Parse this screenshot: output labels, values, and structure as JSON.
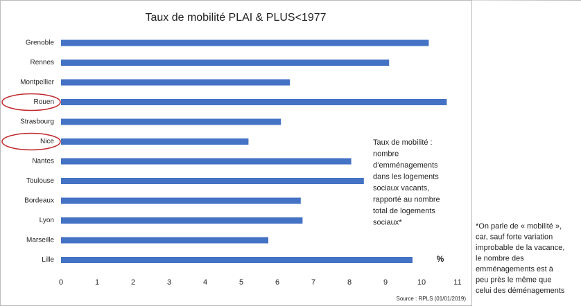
{
  "chart_data": {
    "type": "hbar",
    "title": "Taux de mobilité PLAI & PLUS<1977",
    "categories": [
      "Grenoble",
      "Rennes",
      "Montpellier",
      "Rouen",
      "Strasbourg",
      "Nice",
      "Nantes",
      "Toulouse",
      "Bordeaux",
      "Lyon",
      "Marseille",
      "Lille"
    ],
    "values": [
      10.2,
      9.1,
      6.35,
      10.7,
      6.1,
      5.2,
      8.05,
      8.4,
      6.65,
      6.7,
      5.75,
      9.75
    ],
    "color": "#4472c4",
    "xlim": [
      0,
      11
    ],
    "xticks": [
      0,
      1,
      2,
      3,
      4,
      5,
      6,
      7,
      8,
      9,
      10,
      11
    ],
    "highlighted": [
      "Rouen",
      "Nice"
    ],
    "annotation": [
      "Taux de mobilité :",
      "nombre",
      "d’emménagements",
      "dans les logements",
      "sociaux vacants,",
      "rapporté au nombre",
      "total de logements",
      "sociaux*"
    ],
    "unit_label": "%",
    "source": "Source : RPLS (01/01/2019)"
  },
  "side_note": [
    "*On parle de « mobilité »,",
    "car, sauf forte variation",
    "improbable de la vacance,",
    "le nombre des",
    "emménagements est à",
    "peu près le même que",
    "celui des déménagements"
  ]
}
